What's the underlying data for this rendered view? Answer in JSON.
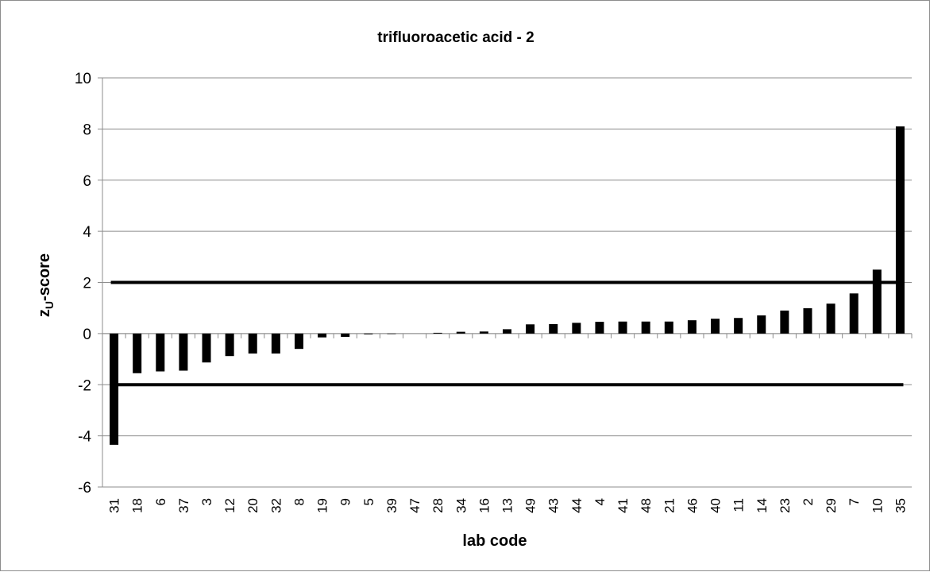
{
  "chart_data": {
    "type": "bar",
    "title": "trifluoroacetic acid - 2",
    "xlabel": "lab code",
    "ylabel": "zU-score",
    "ylabel_main": "z",
    "ylabel_sub": "U",
    "ylabel_rest": "-score",
    "ylim": [
      -6,
      10
    ],
    "yticks": [
      -6,
      -4,
      -2,
      0,
      2,
      4,
      6,
      8,
      10
    ],
    "ytick_labels": [
      "-6",
      "-4",
      "-2",
      "0",
      "2",
      "4",
      "6",
      "8",
      "10"
    ],
    "grid": true,
    "legend": "none",
    "bar_color": "#000000",
    "grid_color": "#8c8c8c",
    "reference_lines": [
      2,
      -2
    ],
    "categories": [
      "31",
      "18",
      "6",
      "37",
      "3",
      "12",
      "20",
      "32",
      "8",
      "19",
      "9",
      "5",
      "39",
      "47",
      "28",
      "34",
      "16",
      "13",
      "49",
      "43",
      "44",
      "4",
      "41",
      "48",
      "21",
      "46",
      "40",
      "11",
      "14",
      "23",
      "2",
      "29",
      "7",
      "10",
      "35"
    ],
    "values": [
      -4.35,
      -1.55,
      -1.48,
      -1.45,
      -1.13,
      -0.88,
      -0.78,
      -0.78,
      -0.6,
      -0.15,
      -0.13,
      -0.03,
      -0.02,
      0.0,
      0.03,
      0.07,
      0.08,
      0.17,
      0.36,
      0.37,
      0.42,
      0.46,
      0.47,
      0.47,
      0.47,
      0.52,
      0.58,
      0.61,
      0.71,
      0.9,
      0.99,
      1.17,
      1.57,
      2.5,
      8.1
    ]
  }
}
